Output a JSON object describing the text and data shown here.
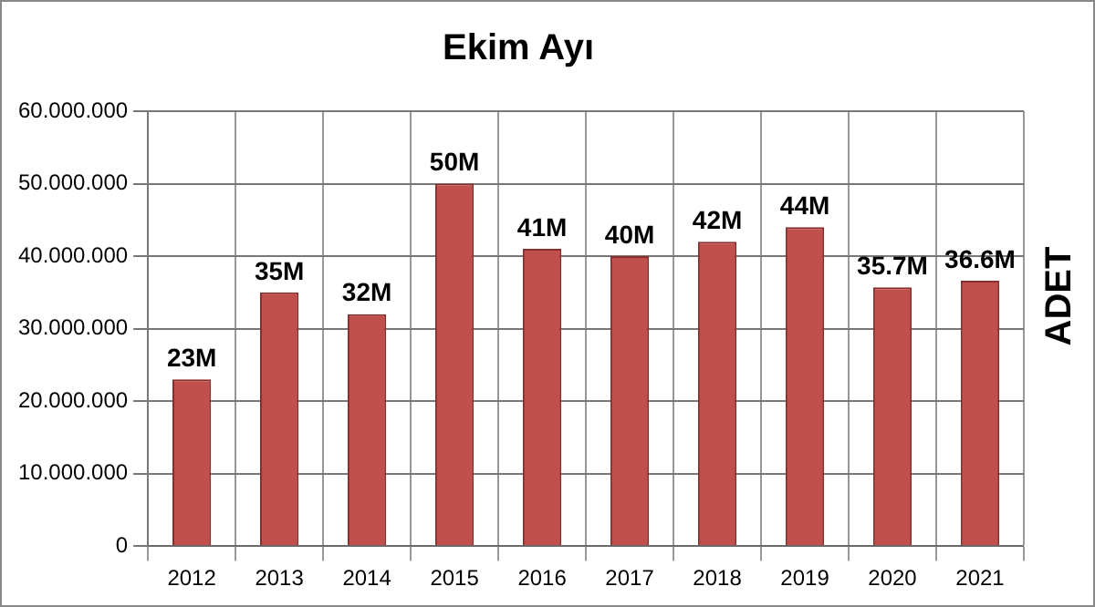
{
  "chart_data": {
    "type": "bar",
    "title": "Ekim Ayı",
    "ylabel": "ADET",
    "categories": [
      "2012",
      "2013",
      "2014",
      "2015",
      "2016",
      "2017",
      "2018",
      "2019",
      "2020",
      "2021"
    ],
    "values": [
      23000000,
      35000000,
      32000000,
      50000000,
      41000000,
      40000000,
      42000000,
      44000000,
      35700000,
      36600000
    ],
    "value_labels": [
      "23M",
      "35M",
      "32M",
      "50M",
      "41M",
      "40M",
      "42M",
      "44M",
      "35.7M",
      "36.6M"
    ],
    "color": "#c0504d",
    "ylim": [
      0,
      60000000
    ],
    "yticks": [
      0,
      {
        "value": 10000000,
        "label": "10.000.000"
      },
      {
        "value": 20000000,
        "label": "20.000.000"
      },
      {
        "value": 30000000,
        "label": "30.000.000"
      },
      {
        "value": 40000000,
        "label": "40.000.000"
      },
      {
        "value": 50000000,
        "label": "50.000.000"
      },
      {
        "value": 60000000,
        "label": "60.000.000"
      }
    ],
    "grid": true,
    "legend": false
  }
}
